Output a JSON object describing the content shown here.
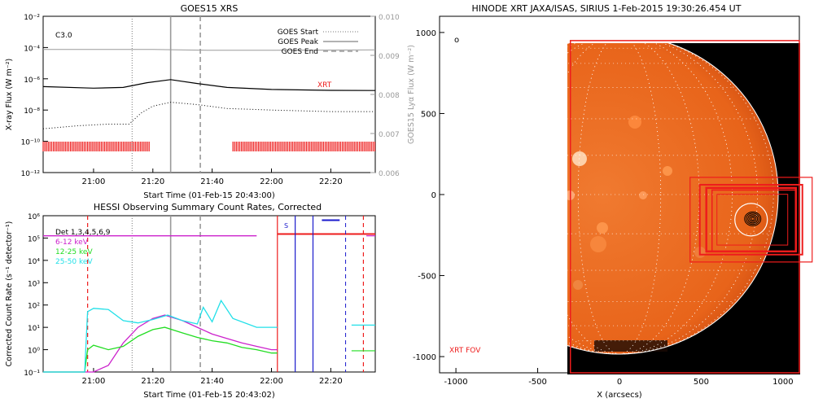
{
  "colors": {
    "black": "#000000",
    "gray": "#9a9a9a",
    "red": "#ee1c1c",
    "magenta": "#cc22cc",
    "green": "#22dd22",
    "cyan": "#22e0e8",
    "blue": "#1a1acc",
    "sun": "#e8641a",
    "sunlight": "#ff9a50"
  },
  "chart_data": [
    {
      "type": "line",
      "title": "GOES15 XRS",
      "xlabel": "Start Time (01-Feb-15 20:43:00)",
      "ylabel": "X-ray Flux (W m⁻²)",
      "y2label": "GOES15 Lyα Flux (W m⁻²)",
      "flare_class": "C3.0",
      "xlim": [
        "20:43",
        "22:35"
      ],
      "ylim_log10": [
        -12,
        -2
      ],
      "y2lim": [
        0.006,
        0.01
      ],
      "x_ticks": [
        "21:00",
        "21:20",
        "21:40",
        "22:00",
        "22:20"
      ],
      "y_ticks": [
        "10⁻¹²",
        "10⁻¹⁰",
        "10⁻⁸",
        "10⁻⁶",
        "10⁻⁴",
        "10⁻²"
      ],
      "y_ticks_exp": [
        -12,
        -10,
        -8,
        -6,
        -4,
        -2
      ],
      "y2_ticks": [
        "0.006",
        "0.007",
        "0.008",
        "0.009",
        "0.010"
      ],
      "y2_ticks_val": [
        0.006,
        0.007,
        0.008,
        0.009,
        0.01
      ],
      "legend": {
        "start": "GOES Start",
        "peak": "GOES Peak",
        "end": "GOES End"
      },
      "markers": {
        "start": "21:13",
        "peak": "21:26",
        "end": "21:36"
      },
      "xrt_label": "XRT",
      "xrt_coverage": [
        [
          "20:43",
          "21:19"
        ],
        [
          "21:47",
          "22:35"
        ]
      ],
      "series": [
        {
          "name": "long",
          "x": [
            "20:43",
            "21:00",
            "21:10",
            "21:18",
            "21:26",
            "21:35",
            "21:45",
            "22:00",
            "22:20",
            "22:35"
          ],
          "log10y": [
            -6.5,
            -6.6,
            -6.55,
            -6.25,
            -6.05,
            -6.3,
            -6.55,
            -6.68,
            -6.74,
            -6.75
          ]
        },
        {
          "name": "short",
          "x": [
            "20:43",
            "20:55",
            "21:05",
            "21:12",
            "21:16",
            "21:20",
            "21:26",
            "21:35",
            "21:45",
            "22:00",
            "22:20",
            "22:35"
          ],
          "log10y": [
            -9.2,
            -9.0,
            -8.9,
            -8.9,
            -8.2,
            -7.75,
            -7.5,
            -7.65,
            -7.9,
            -8.0,
            -8.1,
            -8.1
          ]
        },
        {
          "name": "lya",
          "x": [
            "20:43",
            "21:20",
            "21:40",
            "22:00",
            "22:35"
          ],
          "y": [
            0.00915,
            0.00915,
            0.00913,
            0.00913,
            0.00914
          ]
        }
      ]
    },
    {
      "type": "line",
      "title": "HESSI Observing Summary Count Rates, Corrected",
      "xlabel": "Start Time (01-Feb-15 20:43:02)",
      "ylabel": "Corrected Count Rate (s⁻¹ detector⁻¹)",
      "xlim": [
        "20:43",
        "22:35"
      ],
      "ylim_log10": [
        -1,
        6
      ],
      "x_ticks": [
        "21:00",
        "21:20",
        "21:40",
        "22:00",
        "22:20"
      ],
      "y_ticks": [
        "10⁻¹",
        "10⁰",
        "10¹",
        "10²",
        "10³",
        "10⁴",
        "10⁵",
        "10⁶"
      ],
      "y_ticks_exp": [
        -1,
        0,
        1,
        2,
        3,
        4,
        5,
        6
      ],
      "legend": [
        "Det 1,3,4,5,6,9",
        "6-12 keV",
        "12-25 keV",
        "25-50 keV"
      ],
      "markers": {
        "start": "21:13",
        "peak": "21:26",
        "end": "21:36"
      },
      "red_dashes": [
        "20:58",
        "22:31"
      ],
      "blue_dash": "22:25",
      "saa_label": "S",
      "series": [
        {
          "name": "6-12 keV",
          "x": [
            "20:43",
            "20:58",
            "21:00",
            "21:05",
            "21:10",
            "21:15",
            "21:20",
            "21:24",
            "21:30",
            "21:35",
            "21:40",
            "21:45",
            "21:50",
            "21:55",
            "22:00",
            "22:02"
          ],
          "log10y": [
            -1,
            -1,
            -1,
            -0.7,
            0.3,
            1.0,
            1.4,
            1.55,
            1.3,
            1.0,
            0.7,
            0.5,
            0.3,
            0.15,
            0.0,
            0.0
          ]
        },
        {
          "name": "12-25 keV",
          "x": [
            "20:43",
            "20:57",
            "20:58",
            "21:00",
            "21:05",
            "21:10",
            "21:15",
            "21:20",
            "21:24",
            "21:30",
            "21:35",
            "21:40",
            "21:45",
            "21:50",
            "21:55",
            "22:00",
            "22:02"
          ],
          "log10y": [
            -1,
            -1,
            0.0,
            0.2,
            0.0,
            0.15,
            0.6,
            0.9,
            1.0,
            0.75,
            0.55,
            0.4,
            0.3,
            0.1,
            0.0,
            -0.15,
            -0.15
          ]
        },
        {
          "name": "25-50 keV",
          "x": [
            "20:43",
            "20:57",
            "20:58",
            "21:00",
            "21:05",
            "21:10",
            "21:15",
            "21:20",
            "21:25",
            "21:30",
            "21:35",
            "21:37",
            "21:40",
            "21:43",
            "21:47",
            "21:55",
            "22:00",
            "22:02"
          ],
          "log10y": [
            -1,
            -1,
            1.7,
            1.85,
            1.8,
            1.3,
            1.2,
            1.35,
            1.55,
            1.3,
            1.15,
            1.9,
            1.25,
            2.2,
            1.4,
            1.0,
            1.0,
            1.0
          ]
        },
        {
          "name": "Det 1,3,4,5,6,9",
          "x": [
            "20:43",
            "21:55"
          ],
          "log10y": [
            5.1,
            5.1
          ]
        }
      ]
    },
    {
      "type": "image",
      "title": "HINODE XRT JAXA/ISAS, SIRIUS   1-Feb-2015 19:30:26.454 UT",
      "xlabel": "X (arcsecs)",
      "xlim": [
        -1100,
        1100
      ],
      "ylim": [
        -1100,
        1100
      ],
      "x_ticks": [
        -1000,
        -500,
        0,
        500,
        1000
      ],
      "y_ticks": [
        -1000,
        -500,
        0,
        500,
        1000
      ],
      "fov_label": "XRT FOV",
      "fov": [
        -300,
        1100,
        -1100,
        950
      ],
      "solar_radius": 975,
      "flare_location": [
        805,
        -155
      ],
      "marker_symbol": "o"
    }
  ]
}
